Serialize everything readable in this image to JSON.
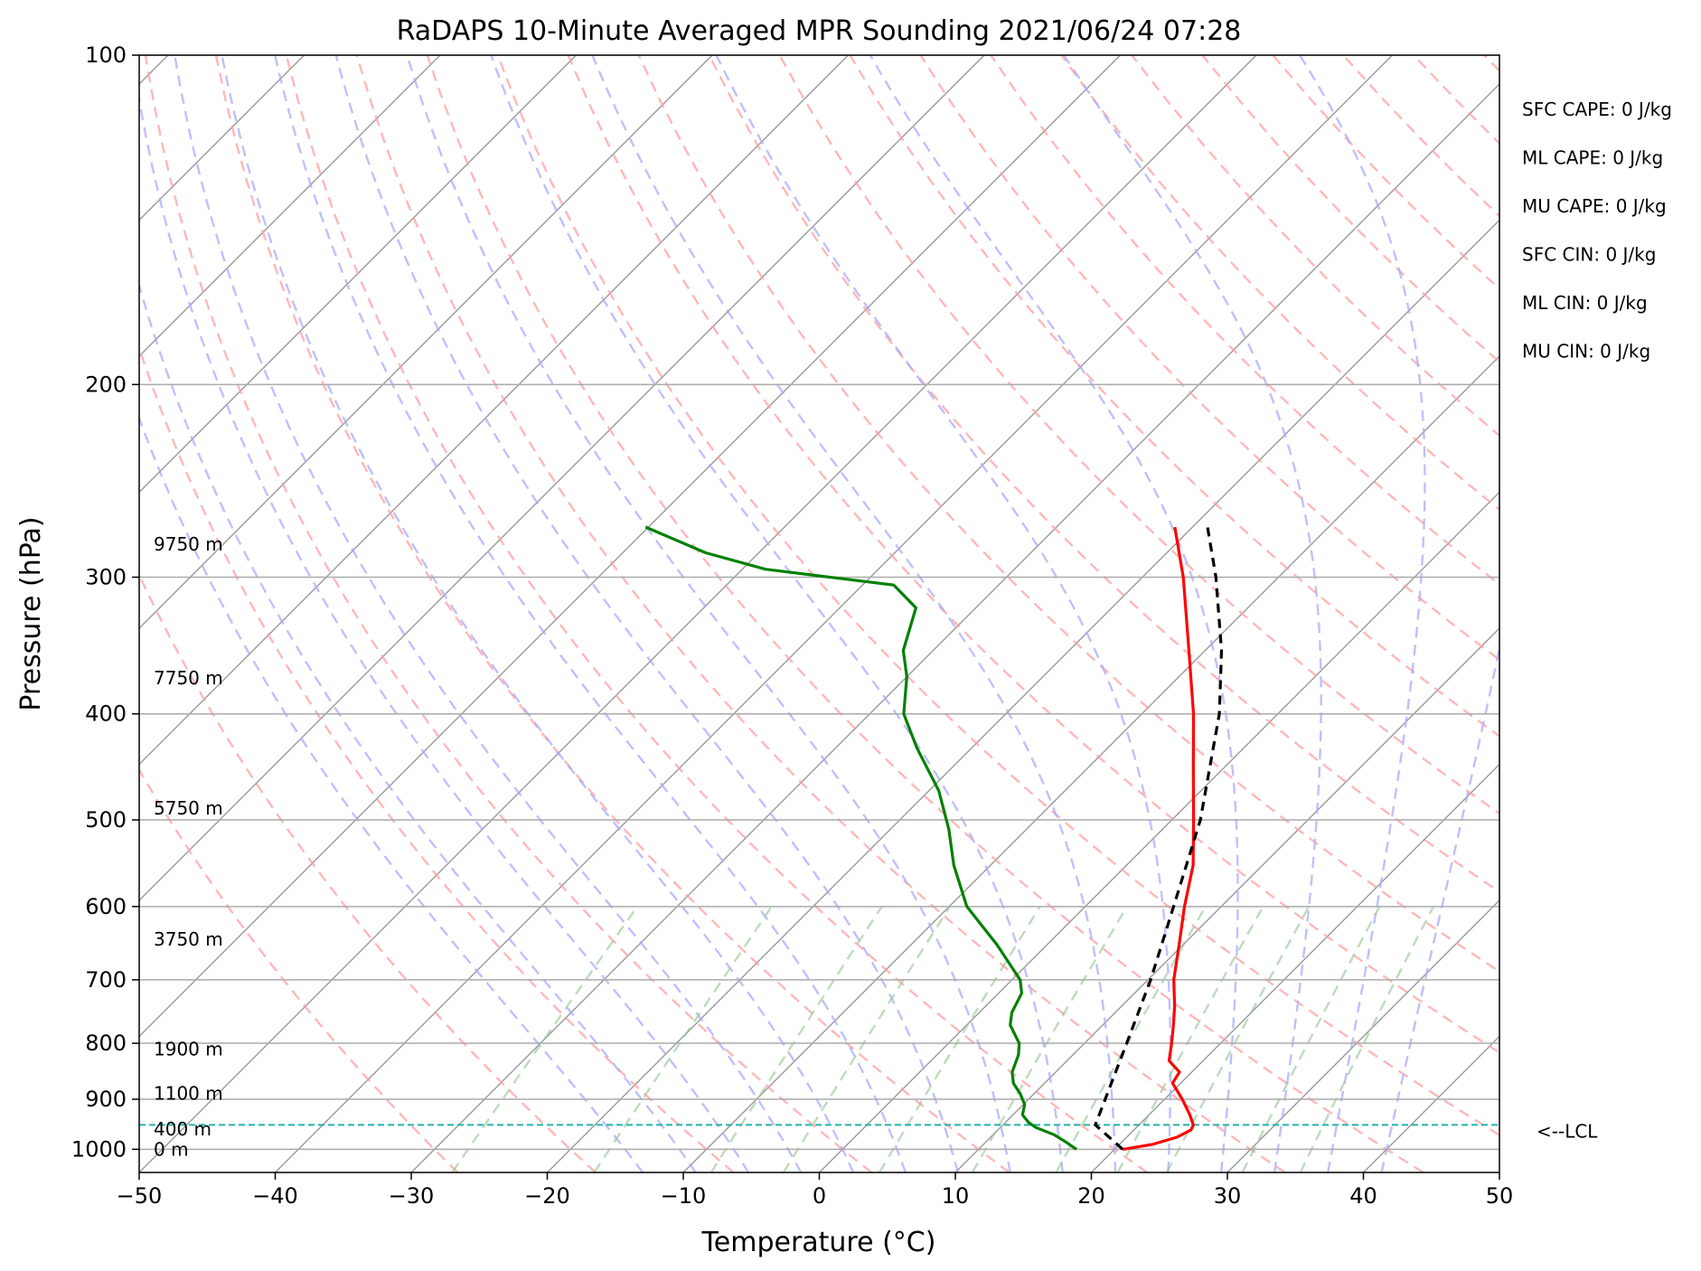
{
  "chart_data": {
    "type": "line",
    "title": "RaDAPS 10-Minute Averaged MPR Sounding 2021/06/24 07:28",
    "xlabel": "Temperature (°C)",
    "ylabel": "Pressure (hPa)",
    "xlim": [
      -50,
      50
    ],
    "ylim": [
      1050,
      100
    ],
    "y_scale": "log",
    "grid": true,
    "x_ticks": [
      -50,
      -40,
      -30,
      -20,
      -10,
      0,
      10,
      20,
      30,
      40,
      50
    ],
    "x_tick_labels": [
      "−50",
      "−40",
      "−30",
      "−20",
      "−10",
      "0",
      "10",
      "20",
      "30",
      "40",
      "50"
    ],
    "y_ticks": [
      100,
      200,
      300,
      400,
      500,
      600,
      700,
      800,
      900,
      1000
    ],
    "y_tick_labels": [
      "100",
      "200",
      "300",
      "400",
      "500",
      "600",
      "700",
      "800",
      "900",
      "1000"
    ],
    "background_lines": {
      "isotherm_color": "#999999",
      "dry_adiabat_color": "#ff9f9f",
      "moist_adiabat_color": "#a9a9ff",
      "mixing_ratio_color": "#8fc48f"
    },
    "series": [
      {
        "color": "#ff0000",
        "points": [
          [
            1000,
            20.6
          ],
          [
            990,
            22.4
          ],
          [
            975,
            23.7
          ],
          [
            960,
            24.2
          ],
          [
            950,
            24.0
          ],
          [
            930,
            23.0
          ],
          [
            900,
            21.3
          ],
          [
            870,
            19.4
          ],
          [
            850,
            19.1
          ],
          [
            830,
            17.5
          ],
          [
            800,
            16.4
          ],
          [
            770,
            15.2
          ],
          [
            740,
            13.9
          ],
          [
            700,
            11.9
          ],
          [
            650,
            9.7
          ],
          [
            600,
            7.3
          ],
          [
            550,
            4.9
          ],
          [
            500,
            1.6
          ],
          [
            450,
            -2.1
          ],
          [
            400,
            -6.2
          ],
          [
            350,
            -11.2
          ],
          [
            300,
            -17.0
          ],
          [
            270,
            -21.3
          ]
        ]
      },
      {
        "color": "#008000",
        "points": [
          [
            1000,
            17.2
          ],
          [
            985,
            15.9
          ],
          [
            970,
            14.5
          ],
          [
            955,
            12.6
          ],
          [
            945,
            11.7
          ],
          [
            930,
            10.7
          ],
          [
            910,
            10.1
          ],
          [
            890,
            9.0
          ],
          [
            870,
            7.7
          ],
          [
            850,
            6.8
          ],
          [
            820,
            6.0
          ],
          [
            800,
            5.2
          ],
          [
            770,
            3.2
          ],
          [
            750,
            2.4
          ],
          [
            720,
            1.7
          ],
          [
            700,
            0.6
          ],
          [
            650,
            -3.7
          ],
          [
            600,
            -8.7
          ],
          [
            550,
            -12.7
          ],
          [
            510,
            -15.7
          ],
          [
            470,
            -19.3
          ],
          [
            430,
            -24.0
          ],
          [
            400,
            -27.5
          ],
          [
            370,
            -30.0
          ],
          [
            350,
            -32.2
          ],
          [
            320,
            -34.4
          ],
          [
            305,
            -37.7
          ],
          [
            295,
            -48.3
          ],
          [
            285,
            -53.9
          ],
          [
            270,
            -60.2
          ]
        ]
      },
      {
        "color": "#000000",
        "dashed": true,
        "points": [
          [
            1000,
            20.6
          ],
          [
            950,
            16.8
          ],
          [
            800,
            13.1
          ],
          [
            700,
            10.2
          ],
          [
            600,
            6.5
          ],
          [
            500,
            2.1
          ],
          [
            400,
            -4.3
          ],
          [
            350,
            -8.8
          ],
          [
            300,
            -14.6
          ],
          [
            270,
            -18.9
          ]
        ]
      }
    ],
    "height_annotations": [
      {
        "label": "0 m",
        "pressure": 1000
      },
      {
        "label": "400 m",
        "pressure": 958
      },
      {
        "label": "1100 m",
        "pressure": 889
      },
      {
        "label": "1900 m",
        "pressure": 810
      },
      {
        "label": "3750 m",
        "pressure": 643
      },
      {
        "label": "5750 m",
        "pressure": 488
      },
      {
        "label": "7750 m",
        "pressure": 371
      },
      {
        "label": "9750 m",
        "pressure": 280
      }
    ],
    "lcl": {
      "pressure": 950,
      "label": "<--LCL",
      "color": "#20b2aa"
    },
    "annotations": [
      "SFC CAPE: 0 J/kg",
      "ML CAPE: 0 J/kg",
      "MU CAPE: 0 J/kg",
      "SFC CIN: 0 J/kg",
      "ML CIN: 0 J/kg",
      "MU CIN: 0 J/kg"
    ]
  }
}
